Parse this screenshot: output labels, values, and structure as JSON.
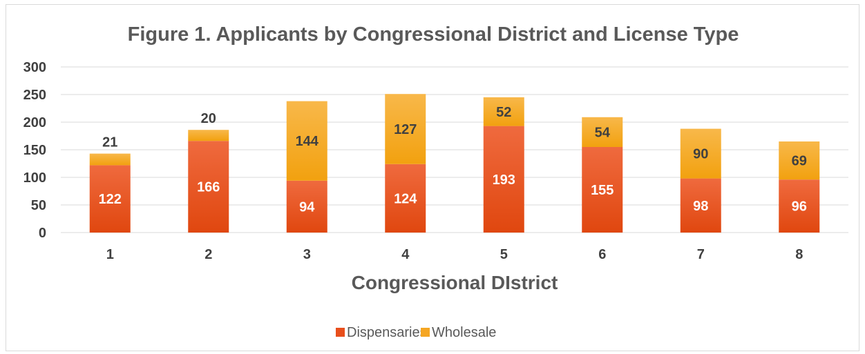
{
  "chart_data": {
    "type": "bar",
    "stacked": true,
    "title": "Figure 1. Applicants by Congressional District and License Type",
    "xlabel": "Congressional DIstrict",
    "ylabel": "",
    "categories": [
      "1",
      "2",
      "3",
      "4",
      "5",
      "6",
      "7",
      "8"
    ],
    "series": [
      {
        "name": "Dispensaries",
        "values": [
          122,
          166,
          94,
          124,
          193,
          155,
          98,
          96
        ],
        "color": "#e84f1c",
        "label_color": "#ffffff"
      },
      {
        "name": "Wholesale",
        "values": [
          21,
          20,
          144,
          127,
          52,
          54,
          90,
          69
        ],
        "color": "#f5a623",
        "label_color": "#404040"
      }
    ],
    "ylim": [
      0,
      300
    ],
    "yticks": [
      0,
      50,
      100,
      150,
      200,
      250,
      300
    ],
    "grid": true,
    "legend_position": "bottom",
    "data_labels": true
  }
}
